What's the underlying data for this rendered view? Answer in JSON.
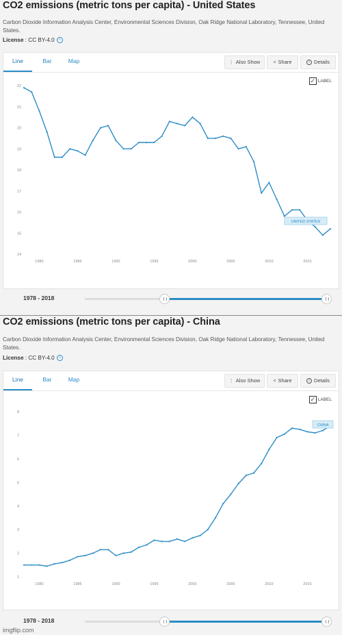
{
  "panels": [
    {
      "title": "CO2 emissions (metric tons per capita) - United States",
      "source": "Carbon Dioxide Information Analysis Center, Environmental Sciences Division, Oak Ridge National Laboratory, Tennessee, United States.",
      "license_label": "License",
      "license_value": " : CC BY-4.0",
      "tabs": [
        "Line",
        "Bar",
        "Map"
      ],
      "active_tab": "Line",
      "buttons": {
        "also_show": "Also Show",
        "share": "Share",
        "details": "Details"
      },
      "label_toggle": "LABEL",
      "range": "1978 - 2018"
    },
    {
      "title": "CO2 emissions (metric tons per capita) - China",
      "source": "Carbon Dioxide Information Analysis Center, Environmental Sciences Division, Oak Ridge National Laboratory, Tennessee, United States.",
      "license_label": "License",
      "license_value": " : CC BY-4.0",
      "tabs": [
        "Line",
        "Bar",
        "Map"
      ],
      "active_tab": "Line",
      "buttons": {
        "also_show": "Also Show",
        "share": "Share",
        "details": "Details"
      },
      "label_toggle": "LABEL",
      "range": "1978 - 2018"
    }
  ],
  "chart_data": [
    {
      "type": "line",
      "series": [
        {
          "name": "UNITED STATES",
          "x": [
            1978,
            1979,
            1980,
            1981,
            1982,
            1983,
            1984,
            1985,
            1986,
            1987,
            1988,
            1989,
            1990,
            1991,
            1992,
            1993,
            1994,
            1995,
            1996,
            1997,
            1998,
            1999,
            2000,
            2001,
            2002,
            2003,
            2004,
            2005,
            2006,
            2007,
            2008,
            2009,
            2010,
            2011,
            2012,
            2013,
            2014,
            2015,
            2016,
            2017,
            2018
          ],
          "values": [
            21.9,
            21.7,
            20.8,
            19.8,
            18.6,
            18.6,
            19.0,
            18.9,
            18.7,
            19.4,
            20.0,
            20.1,
            19.4,
            19.0,
            19.0,
            19.3,
            19.3,
            19.3,
            19.6,
            20.3,
            20.2,
            20.1,
            20.5,
            20.2,
            19.5,
            19.5,
            19.6,
            19.5,
            19.0,
            19.1,
            18.4,
            16.9,
            17.4,
            16.6,
            15.8,
            16.1,
            16.1,
            15.6,
            15.3,
            14.9,
            15.2
          ]
        }
      ],
      "ylim": [
        14,
        22
      ],
      "yticks": [
        14,
        15,
        16,
        17,
        18,
        19,
        20,
        21,
        22
      ],
      "xticks": [
        1980,
        1985,
        1990,
        1995,
        2000,
        2005,
        2010,
        2015
      ],
      "line_color": "#2a8cc7"
    },
    {
      "type": "line",
      "series": [
        {
          "name": "CHINA",
          "x": [
            1978,
            1979,
            1980,
            1981,
            1982,
            1983,
            1984,
            1985,
            1986,
            1987,
            1988,
            1989,
            1990,
            1991,
            1992,
            1993,
            1994,
            1995,
            1996,
            1997,
            1998,
            1999,
            2000,
            2001,
            2002,
            2003,
            2004,
            2005,
            2006,
            2007,
            2008,
            2009,
            2010,
            2011,
            2012,
            2013,
            2014,
            2015,
            2016,
            2017,
            2018
          ],
          "values": [
            1.5,
            1.5,
            1.5,
            1.45,
            1.55,
            1.6,
            1.7,
            1.85,
            1.9,
            2.0,
            2.15,
            2.15,
            1.9,
            2.0,
            2.05,
            2.25,
            2.35,
            2.55,
            2.5,
            2.5,
            2.6,
            2.5,
            2.65,
            2.75,
            3.0,
            3.5,
            4.1,
            4.5,
            4.95,
            5.3,
            5.4,
            5.8,
            6.4,
            6.9,
            7.05,
            7.3,
            7.25,
            7.15,
            7.1,
            7.2,
            7.4
          ]
        }
      ],
      "ylim": [
        1,
        8
      ],
      "yticks": [
        1,
        2,
        3,
        4,
        5,
        6,
        7,
        8
      ],
      "xticks": [
        1980,
        1985,
        1990,
        1995,
        2000,
        2005,
        2010,
        2015
      ],
      "line_color": "#2a8cc7"
    }
  ],
  "footer": {
    "watermark": "imgflip.com"
  }
}
